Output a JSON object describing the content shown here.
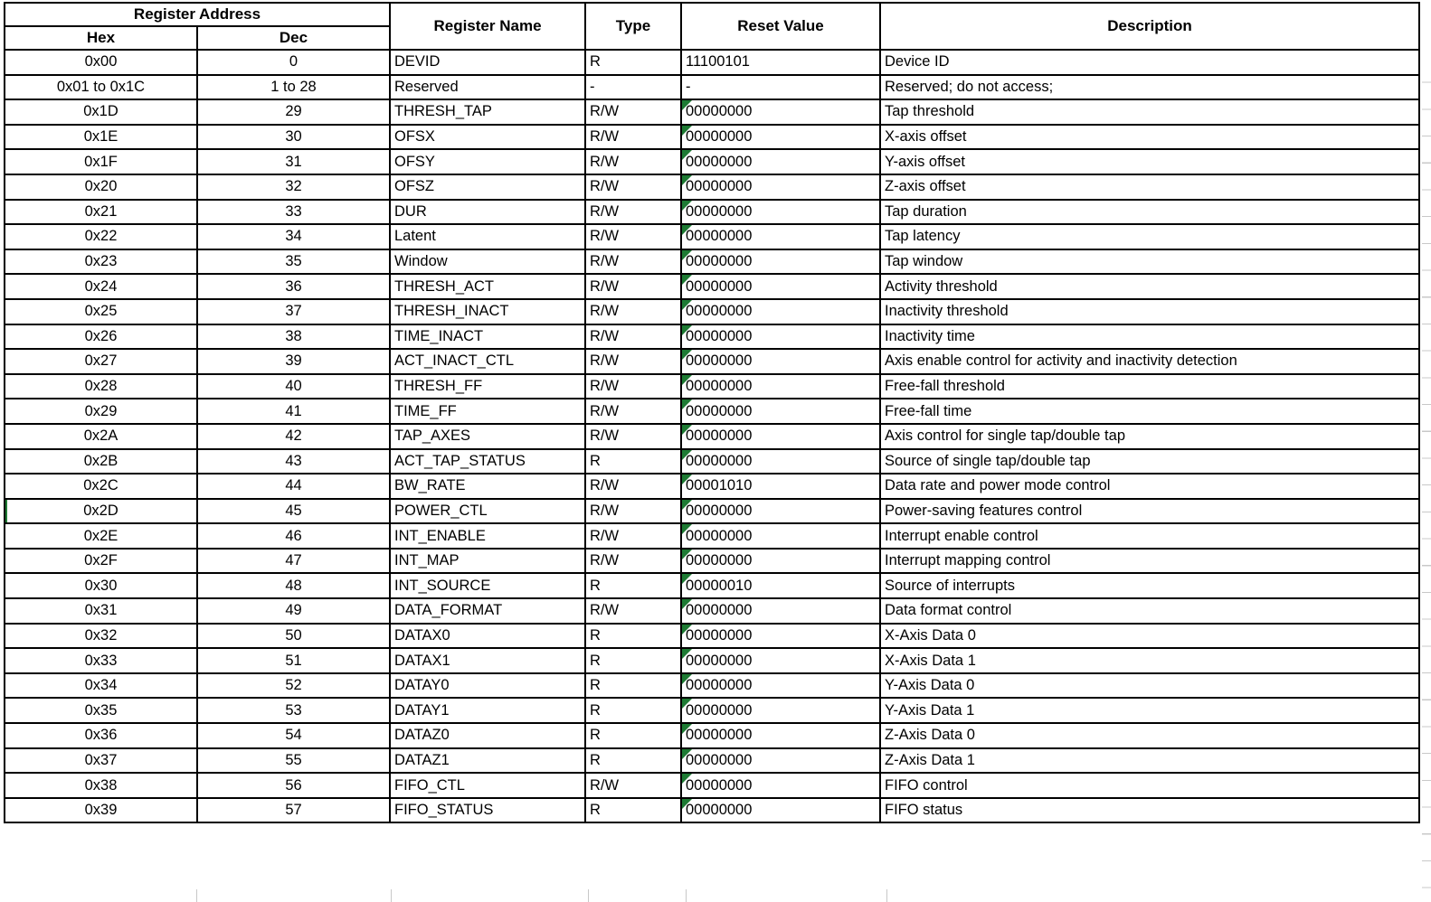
{
  "table": {
    "header": {
      "register_address": "Register Address",
      "hex": "Hex",
      "dec": "Dec",
      "register_name": "Register Name",
      "type": "Type",
      "reset_value": "Reset Value",
      "description": "Description"
    },
    "rows": [
      {
        "hex": "0x00",
        "dec": "0",
        "name": "DEVID",
        "type": "R",
        "reset": "11100101",
        "desc": "Device ID",
        "error_indicator": false,
        "left_marker": false
      },
      {
        "hex": "0x01 to 0x1C",
        "dec": "1 to 28",
        "name": "Reserved",
        "type": "-",
        "reset": "-",
        "desc": "Reserved; do not access;",
        "error_indicator": false,
        "left_marker": false
      },
      {
        "hex": "0x1D",
        "dec": "29",
        "name": "THRESH_TAP",
        "type": "R/W",
        "reset": "00000000",
        "desc": "Tap threshold",
        "error_indicator": true,
        "left_marker": false
      },
      {
        "hex": "0x1E",
        "dec": "30",
        "name": "OFSX",
        "type": "R/W",
        "reset": "00000000",
        "desc": "X-axis offset",
        "error_indicator": true,
        "left_marker": false
      },
      {
        "hex": "0x1F",
        "dec": "31",
        "name": "OFSY",
        "type": "R/W",
        "reset": "00000000",
        "desc": "Y-axis offset",
        "error_indicator": true,
        "left_marker": false
      },
      {
        "hex": "0x20",
        "dec": "32",
        "name": "OFSZ",
        "type": "R/W",
        "reset": "00000000",
        "desc": "Z-axis offset",
        "error_indicator": true,
        "left_marker": false
      },
      {
        "hex": "0x21",
        "dec": "33",
        "name": "DUR",
        "type": "R/W",
        "reset": "00000000",
        "desc": "Tap duration",
        "error_indicator": true,
        "left_marker": false
      },
      {
        "hex": "0x22",
        "dec": "34",
        "name": "Latent",
        "type": "R/W",
        "reset": "00000000",
        "desc": "Tap latency",
        "error_indicator": true,
        "left_marker": false
      },
      {
        "hex": "0x23",
        "dec": "35",
        "name": "Window",
        "type": "R/W",
        "reset": "00000000",
        "desc": "Tap window",
        "error_indicator": true,
        "left_marker": false
      },
      {
        "hex": "0x24",
        "dec": "36",
        "name": "THRESH_ACT",
        "type": "R/W",
        "reset": "00000000",
        "desc": "Activity threshold",
        "error_indicator": true,
        "left_marker": false
      },
      {
        "hex": "0x25",
        "dec": "37",
        "name": "THRESH_INACT",
        "type": "R/W",
        "reset": "00000000",
        "desc": "Inactivity threshold",
        "error_indicator": true,
        "left_marker": false
      },
      {
        "hex": "0x26",
        "dec": "38",
        "name": "TIME_INACT",
        "type": "R/W",
        "reset": "00000000",
        "desc": "Inactivity time",
        "error_indicator": true,
        "left_marker": false
      },
      {
        "hex": "0x27",
        "dec": "39",
        "name": "ACT_INACT_CTL",
        "type": "R/W",
        "reset": "00000000",
        "desc": "Axis enable control for activity and inactivity detection",
        "error_indicator": true,
        "left_marker": false
      },
      {
        "hex": "0x28",
        "dec": "40",
        "name": "THRESH_FF",
        "type": "R/W",
        "reset": "00000000",
        "desc": "Free-fall threshold",
        "error_indicator": true,
        "left_marker": false
      },
      {
        "hex": "0x29",
        "dec": "41",
        "name": "TIME_FF",
        "type": "R/W",
        "reset": "00000000",
        "desc": "Free-fall time",
        "error_indicator": true,
        "left_marker": false
      },
      {
        "hex": "0x2A",
        "dec": "42",
        "name": "TAP_AXES",
        "type": "R/W",
        "reset": "00000000",
        "desc": "Axis control for single tap/double tap",
        "error_indicator": true,
        "left_marker": false
      },
      {
        "hex": "0x2B",
        "dec": "43",
        "name": "ACT_TAP_STATUS",
        "type": "R",
        "reset": "00000000",
        "desc": "Source of single tap/double tap",
        "error_indicator": true,
        "left_marker": false
      },
      {
        "hex": "0x2C",
        "dec": "44",
        "name": "BW_RATE",
        "type": "R/W",
        "reset": "00001010",
        "desc": "Data rate and power mode control",
        "error_indicator": true,
        "left_marker": false
      },
      {
        "hex": "0x2D",
        "dec": "45",
        "name": "POWER_CTL",
        "type": "R/W",
        "reset": "00000000",
        "desc": "Power-saving features control",
        "error_indicator": true,
        "left_marker": true
      },
      {
        "hex": "0x2E",
        "dec": "46",
        "name": "INT_ENABLE",
        "type": "R/W",
        "reset": "00000000",
        "desc": "Interrupt enable control",
        "error_indicator": true,
        "left_marker": false
      },
      {
        "hex": "0x2F",
        "dec": "47",
        "name": "INT_MAP",
        "type": "R/W",
        "reset": "00000000",
        "desc": "Interrupt mapping control",
        "error_indicator": true,
        "left_marker": false
      },
      {
        "hex": "0x30",
        "dec": "48",
        "name": "INT_SOURCE",
        "type": "R",
        "reset": "00000010",
        "desc": "Source of interrupts",
        "error_indicator": true,
        "left_marker": false
      },
      {
        "hex": "0x31",
        "dec": "49",
        "name": "DATA_FORMAT",
        "type": "R/W",
        "reset": "00000000",
        "desc": "Data format control",
        "error_indicator": true,
        "left_marker": false
      },
      {
        "hex": "0x32",
        "dec": "50",
        "name": "DATAX0",
        "type": "R",
        "reset": "00000000",
        "desc": "X-Axis Data 0",
        "error_indicator": true,
        "left_marker": false
      },
      {
        "hex": "0x33",
        "dec": "51",
        "name": "DATAX1",
        "type": "R",
        "reset": "00000000",
        "desc": "X-Axis Data 1",
        "error_indicator": true,
        "left_marker": false
      },
      {
        "hex": "0x34",
        "dec": "52",
        "name": "DATAY0",
        "type": "R",
        "reset": "00000000",
        "desc": "Y-Axis Data 0",
        "error_indicator": true,
        "left_marker": false
      },
      {
        "hex": "0x35",
        "dec": "53",
        "name": "DATAY1",
        "type": "R",
        "reset": "00000000",
        "desc": "Y-Axis Data 1",
        "error_indicator": true,
        "left_marker": false
      },
      {
        "hex": "0x36",
        "dec": "54",
        "name": "DATAZ0",
        "type": "R",
        "reset": "00000000",
        "desc": "Z-Axis Data 0",
        "error_indicator": true,
        "left_marker": false
      },
      {
        "hex": "0x37",
        "dec": "55",
        "name": "DATAZ1",
        "type": "R",
        "reset": "00000000",
        "desc": "Z-Axis Data 1",
        "error_indicator": true,
        "left_marker": false
      },
      {
        "hex": "0x38",
        "dec": "56",
        "name": "FIFO_CTL",
        "type": "R/W",
        "reset": "00000000",
        "desc": "FIFO control",
        "error_indicator": true,
        "left_marker": false
      },
      {
        "hex": "0x39",
        "dec": "57",
        "name": "FIFO_STATUS",
        "type": "R",
        "reset": "00000000",
        "desc": "FIFO status",
        "error_indicator": true,
        "left_marker": false
      }
    ]
  },
  "colors": {
    "grid_black": "#000000",
    "error_indicator_green": "#1e7b34",
    "faint_grid_gray": "#c8c8c8"
  },
  "icons": {
    "error_indicator": "error-indicator-icon"
  }
}
